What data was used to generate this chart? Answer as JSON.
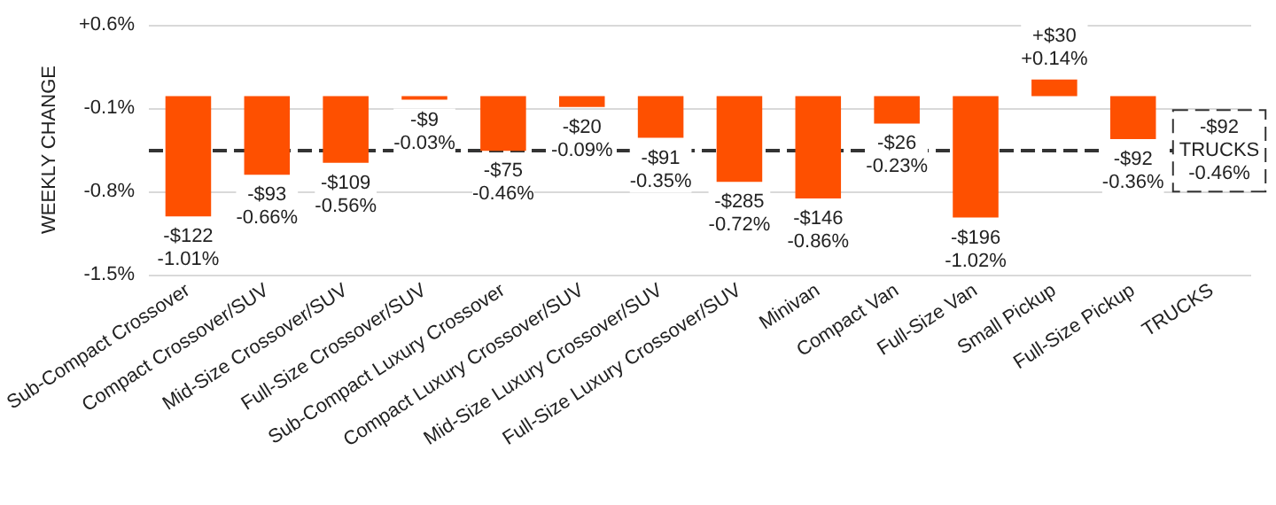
{
  "chart_data": {
    "type": "bar",
    "ylabel": "WEEKLY CHANGE",
    "categories": [
      "Sub-Compact Crossover",
      "Compact Crossover/SUV",
      "Mid-Size Crossover/SUV",
      "Full-Size Crossover/SUV",
      "Sub-Compact Luxury Crossover",
      "Compact Luxury Crossover/SUV",
      "Mid-Size Luxury Crossover/SUV",
      "Full-Size Luxury Crossover/SUV",
      "Minivan",
      "Compact Van",
      "Full-Size Van",
      "Small Pickup",
      "Full-Size Pickup",
      "TRUCKS"
    ],
    "values": [
      -1.01,
      -0.66,
      -0.56,
      -0.03,
      -0.46,
      -0.09,
      -0.35,
      -0.72,
      -0.86,
      -0.23,
      -1.02,
      0.14,
      -0.36,
      null
    ],
    "value_labels": [
      "-$122\n-1.01%",
      "-$93\n-0.66%",
      "-$109\n-0.56%",
      "-$9\n-0.03%",
      "-$75\n-0.46%",
      "-$20\n-0.09%",
      "-$91\n-0.35%",
      "-$285\n-0.72%",
      "-$146\n-0.86%",
      "-$26\n-0.23%",
      "-$196\n-1.02%",
      "+$30\n+0.14%",
      "-$92\n-0.36%",
      null
    ],
    "color": "#fe5000",
    "ylim": [
      -1.5,
      0.6
    ],
    "yticks": [
      {
        "value": 0.6,
        "label": "+0.6%"
      },
      {
        "value": -0.1,
        "label": "-0.1%"
      },
      {
        "value": -0.8,
        "label": "-0.8%"
      },
      {
        "value": -1.5,
        "label": "-1.5%"
      }
    ],
    "ref_lines": [
      {
        "axis": "y",
        "value": -0.46,
        "label": "-$92\nTRUCKS\n-0.46%",
        "color": "#333333",
        "line_style": "dashed"
      }
    ],
    "grid": "y"
  }
}
